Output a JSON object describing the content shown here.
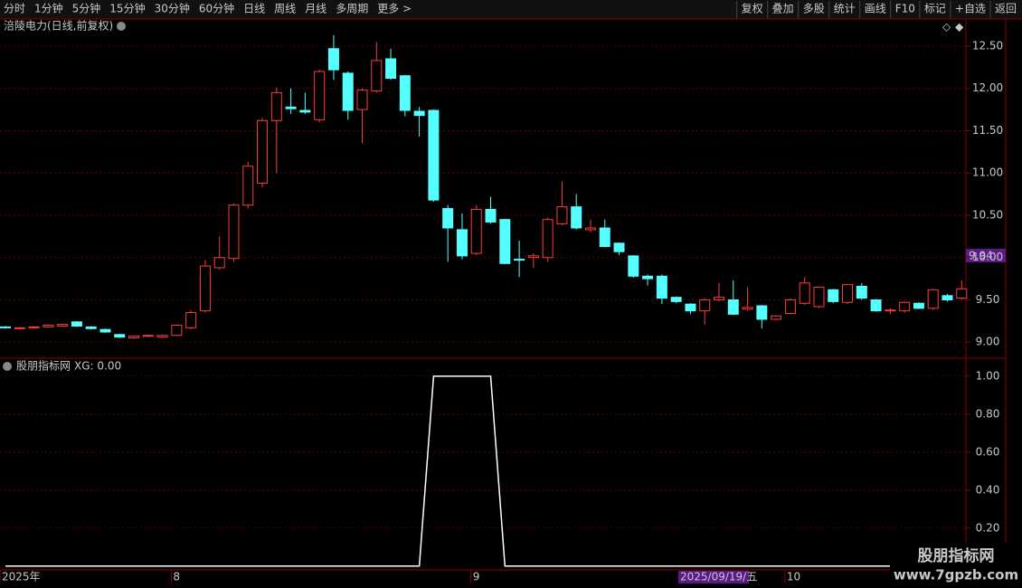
{
  "toolbar": {
    "left": [
      "分时",
      "1分钟",
      "5分钟",
      "15分钟",
      "30分钟",
      "60分钟",
      "日线",
      "周线",
      "月线",
      "多周期",
      "更多 >"
    ],
    "active": 6,
    "right": [
      "复权",
      "叠加",
      "多股",
      "统计",
      "画线",
      "F10",
      "标记",
      "+自选",
      "返回"
    ]
  },
  "chart_data": [
    {
      "type": "candlestick",
      "title": "涪陵电力(日线,前复权)",
      "up_color": "#ff3c3c",
      "down_color": "#54ffff",
      "categories": [
        "2025年",
        null,
        null,
        null,
        null,
        null,
        null,
        null,
        null,
        null,
        null,
        null,
        "8",
        null,
        null,
        null,
        null,
        null,
        null,
        null,
        null,
        null,
        null,
        null,
        null,
        null,
        null,
        null,
        null,
        null,
        null,
        null,
        null,
        "9",
        null,
        null,
        null,
        null,
        null,
        null,
        null,
        null,
        null,
        null,
        null,
        null,
        null,
        null,
        null,
        null,
        null,
        null,
        null,
        null,
        null,
        "10",
        null,
        null,
        null,
        null,
        null,
        null,
        null,
        null,
        null,
        null,
        null,
        null
      ],
      "open": [
        9.18,
        9.16,
        9.17,
        9.18,
        9.19,
        9.24,
        9.18,
        9.15,
        9.09,
        9.05,
        9.07,
        9.06,
        9.08,
        9.17,
        9.37,
        9.88,
        9.99,
        10.62,
        10.88,
        11.62,
        11.78,
        11.74,
        11.63,
        12.47,
        12.18,
        11.75,
        11.97,
        12.35,
        12.15,
        11.73,
        11.74,
        10.58,
        10.33,
        10.05,
        10.57,
        10.45,
        9.98,
        10.0,
        10.0,
        10.4,
        10.6,
        10.33,
        10.35,
        10.17,
        10.02,
        9.78,
        9.78,
        9.53,
        9.45,
        9.37,
        9.5,
        9.5,
        9.39,
        9.43,
        9.27,
        9.34,
        9.46,
        9.42,
        9.62,
        9.47,
        9.66,
        9.5,
        9.37,
        9.37,
        9.46,
        9.4,
        9.55,
        9.52
      ],
      "high": [
        9.19,
        9.18,
        9.19,
        9.21,
        9.22,
        9.25,
        9.19,
        9.16,
        9.1,
        9.08,
        9.09,
        9.09,
        9.21,
        9.38,
        9.97,
        10.25,
        10.64,
        11.13,
        11.65,
        12.01,
        12.0,
        11.95,
        12.22,
        12.63,
        12.2,
        12.0,
        12.55,
        12.47,
        12.16,
        11.78,
        11.75,
        10.62,
        10.52,
        10.62,
        10.72,
        10.46,
        10.2,
        10.05,
        10.47,
        10.9,
        10.75,
        10.45,
        10.45,
        10.18,
        10.03,
        9.8,
        9.8,
        9.54,
        9.46,
        9.52,
        9.7,
        9.73,
        9.65,
        9.44,
        9.32,
        9.52,
        9.77,
        9.66,
        9.63,
        9.69,
        9.7,
        9.51,
        9.4,
        9.48,
        9.47,
        9.63,
        9.57,
        9.73
      ],
      "low": [
        9.16,
        9.15,
        9.16,
        9.17,
        9.18,
        9.18,
        9.15,
        9.11,
        9.05,
        9.04,
        9.06,
        9.05,
        9.07,
        9.15,
        9.35,
        9.86,
        9.95,
        10.58,
        10.83,
        11.0,
        11.7,
        11.7,
        11.6,
        12.1,
        11.63,
        11.35,
        11.95,
        12.1,
        11.67,
        11.43,
        10.66,
        9.95,
        9.98,
        10.03,
        10.4,
        9.92,
        9.77,
        9.88,
        9.95,
        10.38,
        10.33,
        10.3,
        10.12,
        10.03,
        9.76,
        9.67,
        9.45,
        9.46,
        9.33,
        9.21,
        9.48,
        9.32,
        9.37,
        9.16,
        9.26,
        9.33,
        9.44,
        9.4,
        9.46,
        9.45,
        9.5,
        9.36,
        9.33,
        9.35,
        9.39,
        9.38,
        9.48,
        9.5
      ],
      "close": [
        9.17,
        9.17,
        9.18,
        9.2,
        9.21,
        9.19,
        9.16,
        9.12,
        9.06,
        9.07,
        9.08,
        9.08,
        9.2,
        9.35,
        9.9,
        10.0,
        10.62,
        11.08,
        11.62,
        11.95,
        11.76,
        11.72,
        12.2,
        12.22,
        11.74,
        11.98,
        12.33,
        12.12,
        11.74,
        11.68,
        10.68,
        10.35,
        10.02,
        10.57,
        10.42,
        9.93,
        9.97,
        10.02,
        10.45,
        10.6,
        10.35,
        10.35,
        10.13,
        10.07,
        9.78,
        9.75,
        9.52,
        9.48,
        9.37,
        9.5,
        9.53,
        9.33,
        9.41,
        9.27,
        9.31,
        9.5,
        9.7,
        9.65,
        9.48,
        9.68,
        9.52,
        9.37,
        9.38,
        9.47,
        9.4,
        9.62,
        9.5,
        9.63
      ],
      "ylim": [
        8.81,
        12.81
      ],
      "yticks": [
        {
          "value": 9,
          "label": "9.00"
        },
        {
          "value": 9.5,
          "label": "9.50"
        },
        {
          "value": 10,
          "label": "10.00"
        },
        {
          "value": 10.5,
          "label": "10.50"
        },
        {
          "value": 11,
          "label": "11.00"
        },
        {
          "value": 11.5,
          "label": "11.50"
        },
        {
          "value": 12,
          "label": "12.00"
        },
        {
          "value": 12.5,
          "label": "12.50"
        }
      ],
      "grid": true,
      "price_label": "9.94",
      "date_label": "2025/09/19/五"
    },
    {
      "type": "line",
      "title": "股朋指标网",
      "value_text": "XG: 0.00",
      "series": [
        {
          "name": "XG",
          "color": "#ffffff",
          "values": [
            0,
            0,
            0,
            0,
            0,
            0,
            0,
            0,
            0,
            0,
            0,
            0,
            0,
            0,
            0,
            0,
            0,
            0,
            0,
            0,
            0,
            0,
            0,
            0,
            0,
            0,
            0,
            0,
            0,
            0,
            1,
            1,
            1,
            1,
            1,
            0,
            0,
            0,
            0,
            0,
            0,
            0,
            0,
            0,
            0,
            0,
            0,
            0,
            0,
            0,
            0,
            0,
            0,
            0,
            0,
            0,
            0,
            0,
            0,
            0,
            0,
            0,
            0,
            0,
            0,
            0,
            0,
            0
          ]
        }
      ],
      "ylim": [
        -0.02,
        1.09
      ],
      "yticks": [
        {
          "value": 0.2,
          "label": "0.20"
        },
        {
          "value": 0.4,
          "label": "0.40"
        },
        {
          "value": 0.6,
          "label": "0.60"
        },
        {
          "value": 0.8,
          "label": "0.80"
        },
        {
          "value": 1,
          "label": "1.00"
        }
      ],
      "grid": true
    }
  ],
  "watermark": {
    "name": "股朋指标网",
    "url": "www.7gpzb.com"
  }
}
